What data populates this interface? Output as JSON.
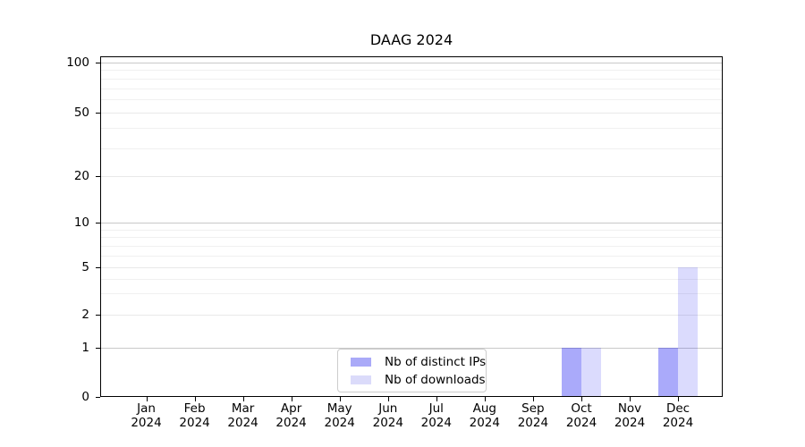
{
  "figure": {
    "title": "DAAG 2024"
  },
  "chart_data": {
    "type": "bar",
    "title": "DAAG 2024",
    "categories": [
      "Jan 2024",
      "Feb 2024",
      "Mar 2024",
      "Apr 2024",
      "May 2024",
      "Jun 2024",
      "Jul 2024",
      "Aug 2024",
      "Sep 2024",
      "Oct 2024",
      "Nov 2024",
      "Dec 2024"
    ],
    "series": [
      {
        "name": "Nb of distinct IPs",
        "color": "#aaaaf8",
        "values": [
          0,
          0,
          0,
          0,
          0,
          0,
          0,
          0,
          0,
          1,
          0,
          1
        ]
      },
      {
        "name": "Nb of downloads",
        "color": "#dbdbfa",
        "values": [
          0,
          0,
          0,
          0,
          0,
          0,
          0,
          0,
          0,
          1,
          0,
          5
        ]
      }
    ],
    "xlabel": "",
    "ylabel": "",
    "yscale": "symlog",
    "y_ticks": [
      0,
      1,
      2,
      5,
      10,
      20,
      50,
      100
    ],
    "ylim": [
      0,
      110
    ],
    "grid": "horizontal",
    "legend_position": "lower center inside",
    "bar_group": "side-by-side"
  }
}
